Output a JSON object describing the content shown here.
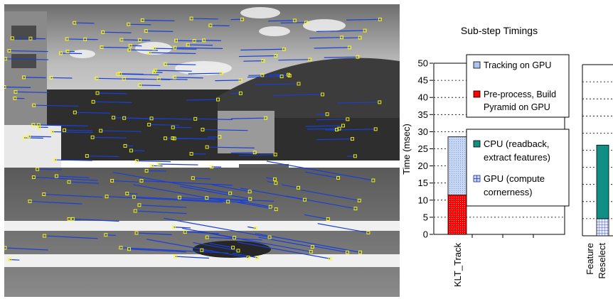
{
  "photo": {
    "description_icon": "road-scene-feature-tracks-photo",
    "track_color": "#1a3fd6",
    "feature_box_color": "#ffff00"
  },
  "chart_data": [
    {
      "type": "bar",
      "stacked": true,
      "title": "Sub-step Timings",
      "ylabel": "Time (msec)",
      "xlabel": "",
      "ylim": [
        0,
        50
      ],
      "yticks": [
        0,
        5,
        10,
        15,
        20,
        25,
        30,
        35,
        40,
        45,
        50
      ],
      "grid": "horizontal-dotted",
      "categories": [
        "KLT_Track"
      ],
      "series": [
        {
          "name": "Pre-process, Build Pyramid on GPU",
          "values": [
            11.5
          ],
          "color": "#ff0000",
          "pattern": "dots"
        },
        {
          "name": "Tracking on GPU",
          "values": [
            17.0
          ],
          "color": "#aac4ee",
          "pattern": "dots"
        }
      ],
      "legend_placement": "top",
      "legend_entries": [
        "Tracking on GPU",
        "Pre-process, Build Pyramid on GPU"
      ]
    },
    {
      "type": "bar",
      "stacked": true,
      "ylim": [
        0,
        50
      ],
      "grid": "horizontal-dotted",
      "categories": [
        "Feature Reselect"
      ],
      "category_lines": [
        "Feature",
        "Reselect"
      ],
      "series": [
        {
          "name": "GPU (compute cornerness)",
          "values": [
            5.0
          ],
          "color": "#c8d4ff",
          "pattern": "grid"
        },
        {
          "name": "CPU (readback, extract features)",
          "values": [
            21.5
          ],
          "color": "#118f84",
          "pattern": "solid"
        }
      ],
      "legend_placement": "top",
      "legend_entries": [
        "CPU (readback, extract features)",
        "GPU (compute cornerness)"
      ]
    }
  ],
  "legend1": {
    "line1": "Tracking on GPU",
    "line2a": "Pre-process, Build",
    "line2b": "Pyramid on GPU"
  },
  "legend2": {
    "line1a": "CPU (readback,",
    "line1b": "extract features)",
    "line2a": "GPU (compute",
    "line2b": "cornerness)"
  }
}
